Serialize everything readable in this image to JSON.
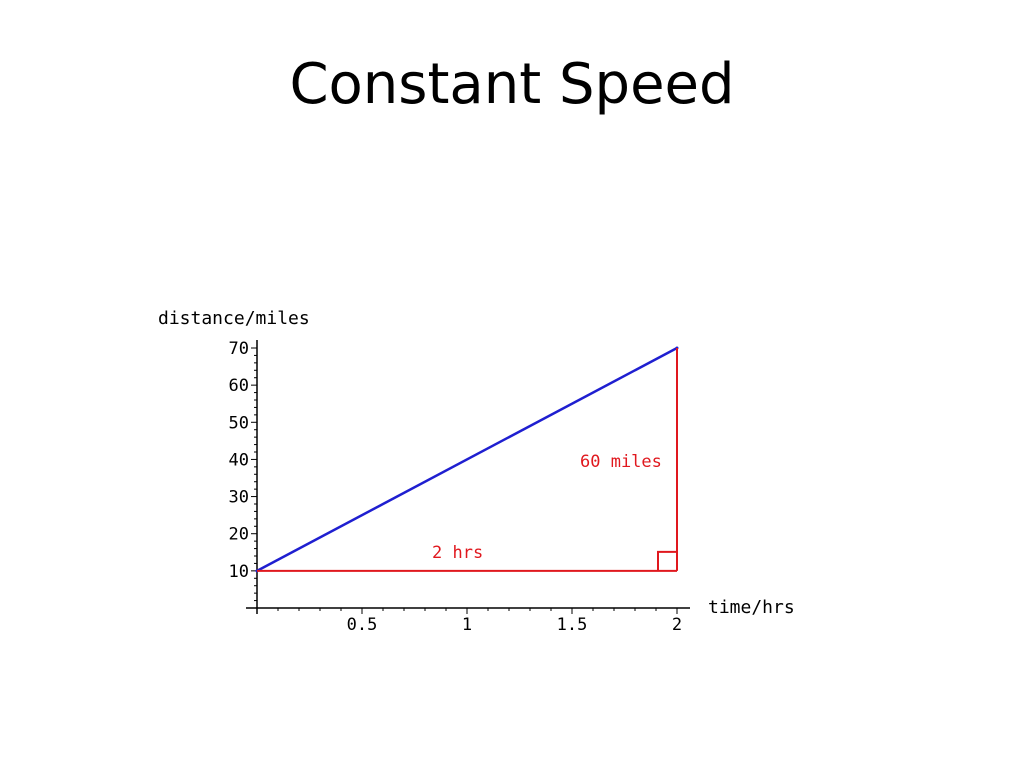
{
  "slide": {
    "title": "Constant Speed"
  },
  "chart_data": {
    "type": "line",
    "title": "",
    "xlabel": "time/hrs",
    "ylabel": "distance/miles",
    "xlim": [
      0,
      2
    ],
    "ylim": [
      0,
      70
    ],
    "x_ticks": [
      {
        "value": 0.5,
        "label": "0.5"
      },
      {
        "value": 1,
        "label": "1"
      },
      {
        "value": 1.5,
        "label": "1.5"
      },
      {
        "value": 2,
        "label": "2"
      }
    ],
    "y_ticks": [
      {
        "value": 10,
        "label": "10"
      },
      {
        "value": 20,
        "label": "20"
      },
      {
        "value": 30,
        "label": "30"
      },
      {
        "value": 40,
        "label": "40"
      },
      {
        "value": 50,
        "label": "50"
      },
      {
        "value": 60,
        "label": "60"
      },
      {
        "value": 70,
        "label": "70"
      }
    ],
    "series": [
      {
        "color": "#1f1fd0",
        "x": [
          0,
          2
        ],
        "y": [
          10,
          70
        ]
      }
    ],
    "annotations": {
      "color": "#e0181e",
      "horizontal_label": "2 hrs",
      "vertical_label": "60 miles",
      "triangle": {
        "x0": 0,
        "x1": 2,
        "y0": 10,
        "y1": 70
      },
      "right_angle_marker": true
    },
    "grid": false
  }
}
